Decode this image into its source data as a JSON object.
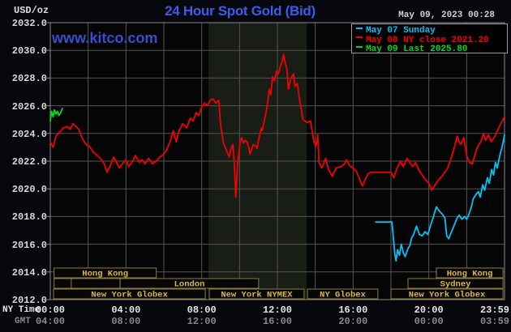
{
  "header": {
    "unit": "USD/oz",
    "title": "24 Hour Spot Gold (Bid)",
    "datetime": "May 09, 2023 00:28",
    "watermark": "www.kitco.com"
  },
  "axis_corner": {
    "ny_time": "NY Time",
    "gmt": "GMT"
  },
  "legend": {
    "items": [
      {
        "label": "May 07 Sunday",
        "color_key": "may07"
      },
      {
        "label": "May 08 NY close 2021.20",
        "color_key": "may08"
      },
      {
        "label": "May 09 Last 2025.80",
        "color_key": "may09"
      }
    ]
  },
  "colors": {
    "page_bg": "#07070e",
    "plot_bg": "#050505",
    "band": "#181d15",
    "grid": "#555555",
    "frame": "#8a8a8a",
    "title": "#3d5ce8",
    "watermark": "#3450d0",
    "axis_text": "#e6e6e6",
    "gmt_text": "#8a8a8a",
    "session_border": "#8d7c33",
    "session_text": "#d9b944",
    "may07": "#00c3f7",
    "may08": "#f40000",
    "may09": "#00d826"
  },
  "chart_data": {
    "type": "line",
    "title": "24 Hour Spot Gold (Bid)",
    "ylabel": "USD/oz",
    "x_axis": {
      "range_hours": [
        0,
        24
      ],
      "gridline_step_hours": 2,
      "ticks": [
        {
          "h": 0,
          "ny": "00:00",
          "gmt": "04:00"
        },
        {
          "h": 4,
          "ny": "04:00",
          "gmt": "08:00"
        },
        {
          "h": 8,
          "ny": "08:00",
          "gmt": "12:00"
        },
        {
          "h": 12,
          "ny": "12:00",
          "gmt": "16:00"
        },
        {
          "h": 16,
          "ny": "16:00",
          "gmt": "20:00"
        },
        {
          "h": 20,
          "ny": "20:00",
          "gmt": "00:00"
        },
        {
          "h": 23.983,
          "ny": "23:59",
          "gmt": "03:59"
        }
      ]
    },
    "y_axis": {
      "min": 2012,
      "max": 2032,
      "step": 2,
      "unit": "USD/oz",
      "ticks": [
        {
          "v": 2032,
          "label": "2032.0"
        },
        {
          "v": 2030,
          "label": "2030.0"
        },
        {
          "v": 2028,
          "label": "2028.0"
        },
        {
          "v": 2026,
          "label": "2026.0"
        },
        {
          "v": 2024,
          "label": "2024.0"
        },
        {
          "v": 2022,
          "label": "2022.0"
        },
        {
          "v": 2020,
          "label": "2020.0"
        },
        {
          "v": 2018,
          "label": "2018.0"
        },
        {
          "v": 2016,
          "label": "2016.0"
        },
        {
          "v": 2014,
          "label": "2014.0"
        },
        {
          "v": 2012,
          "label": "2012.0"
        }
      ]
    },
    "nymex_band_hours": [
      8.36,
      13.55
    ],
    "sessions": [
      {
        "row": 0,
        "label": "Hong Kong",
        "h1": 0.2,
        "h2": 5.6
      },
      {
        "row": 0,
        "label": "Hong Kong",
        "h1": 20.4,
        "h2": 23.92
      },
      {
        "row": 1,
        "label": "",
        "h1": 0.2,
        "h2": 1.11
      },
      {
        "row": 1,
        "label": "",
        "h1": 1.11,
        "h2": 3.69
      },
      {
        "row": 1,
        "label": "London",
        "h1": 3.69,
        "h2": 11.01
      },
      {
        "row": 1,
        "label": "Sydney",
        "h1": 18.9,
        "h2": 23.92
      },
      {
        "row": 2,
        "label": "New York Globex",
        "h1": 0.17,
        "h2": 8.19
      },
      {
        "row": 2,
        "label": "New York NYMEX",
        "h1": 8.4,
        "h2": 13.41
      },
      {
        "row": 2,
        "label": "NY Globex",
        "h1": 13.59,
        "h2": 17.31
      },
      {
        "row": 2,
        "label": "New York Globex",
        "h1": 18.0,
        "h2": 23.92
      }
    ],
    "series": [
      {
        "name": "May 07 Sunday",
        "color_key": "may07",
        "points": [
          [
            17.2,
            2017.6
          ],
          [
            18.05,
            2017.6
          ],
          [
            18.12,
            2016.6
          ],
          [
            18.2,
            2015.3
          ],
          [
            18.27,
            2014.8
          ],
          [
            18.35,
            2015.6
          ],
          [
            18.45,
            2015.2
          ],
          [
            18.55,
            2016.0
          ],
          [
            18.65,
            2015.4
          ],
          [
            18.75,
            2015.1
          ],
          [
            18.9,
            2015.7
          ],
          [
            19.0,
            2015.9
          ],
          [
            19.1,
            2016.5
          ],
          [
            19.2,
            2016.7
          ],
          [
            19.35,
            2017.3
          ],
          [
            19.5,
            2016.7
          ],
          [
            19.65,
            2016.6
          ],
          [
            19.8,
            2016.9
          ],
          [
            19.95,
            2016.7
          ],
          [
            20.1,
            2017.4
          ],
          [
            20.25,
            2018.0
          ],
          [
            20.4,
            2018.7
          ],
          [
            20.55,
            2018.4
          ],
          [
            20.7,
            2018.2
          ],
          [
            20.85,
            2017.9
          ],
          [
            20.95,
            2016.6
          ],
          [
            21.05,
            2016.4
          ],
          [
            21.2,
            2016.9
          ],
          [
            21.35,
            2017.4
          ],
          [
            21.5,
            2017.9
          ],
          [
            21.6,
            2018.1
          ],
          [
            21.75,
            2017.8
          ],
          [
            21.9,
            2018.0
          ],
          [
            22.0,
            2017.8
          ],
          [
            22.1,
            2018.1
          ],
          [
            22.25,
            2018.7
          ],
          [
            22.35,
            2019.3
          ],
          [
            22.5,
            2019.6
          ],
          [
            22.62,
            2019.8
          ],
          [
            22.72,
            2019.4
          ],
          [
            22.85,
            2020.3
          ],
          [
            22.95,
            2019.9
          ],
          [
            23.1,
            2020.8
          ],
          [
            23.2,
            2020.4
          ],
          [
            23.32,
            2021.4
          ],
          [
            23.42,
            2021.0
          ],
          [
            23.52,
            2021.9
          ],
          [
            23.62,
            2021.5
          ],
          [
            23.75,
            2022.4
          ],
          [
            23.85,
            2022.9
          ],
          [
            23.95,
            2023.5
          ],
          [
            24.0,
            2023.9
          ]
        ]
      },
      {
        "name": "May 08 NY close 2021.20",
        "color_key": "may08",
        "points": [
          [
            0,
            2023.4
          ],
          [
            0.15,
            2023.0
          ],
          [
            0.3,
            2023.8
          ],
          [
            0.5,
            2024.1
          ],
          [
            0.7,
            2024.4
          ],
          [
            0.9,
            2024.5
          ],
          [
            1.05,
            2024.3
          ],
          [
            1.2,
            2024.7
          ],
          [
            1.35,
            2024.5
          ],
          [
            1.5,
            2024.3
          ],
          [
            1.7,
            2023.6
          ],
          [
            1.9,
            2023.2
          ],
          [
            2.1,
            2023.0
          ],
          [
            2.3,
            2022.6
          ],
          [
            2.5,
            2022.4
          ],
          [
            2.7,
            2022.1
          ],
          [
            2.85,
            2021.8
          ],
          [
            3.0,
            2021.2
          ],
          [
            3.15,
            2021.6
          ],
          [
            3.35,
            2022.3
          ],
          [
            3.5,
            2021.9
          ],
          [
            3.65,
            2021.5
          ],
          [
            3.8,
            2021.8
          ],
          [
            4.0,
            2022.1
          ],
          [
            4.15,
            2021.6
          ],
          [
            4.35,
            2022.0
          ],
          [
            4.5,
            2022.4
          ],
          [
            4.7,
            2021.9
          ],
          [
            4.85,
            2022.1
          ],
          [
            5.0,
            2021.8
          ],
          [
            5.2,
            2022.2
          ],
          [
            5.4,
            2021.8
          ],
          [
            5.6,
            2022.0
          ],
          [
            5.8,
            2022.3
          ],
          [
            6.0,
            2022.5
          ],
          [
            6.15,
            2022.8
          ],
          [
            6.35,
            2023.5
          ],
          [
            6.5,
            2024.2
          ],
          [
            6.65,
            2023.4
          ],
          [
            6.8,
            2024.2
          ],
          [
            7.0,
            2024.7
          ],
          [
            7.2,
            2024.4
          ],
          [
            7.4,
            2025.1
          ],
          [
            7.55,
            2024.9
          ],
          [
            7.7,
            2025.5
          ],
          [
            7.85,
            2025.3
          ],
          [
            8.0,
            2025.9
          ],
          [
            8.15,
            2026.2
          ],
          [
            8.3,
            2026.0
          ],
          [
            8.45,
            2026.4
          ],
          [
            8.6,
            2026.5
          ],
          [
            8.75,
            2026.2
          ],
          [
            8.9,
            2026.4
          ],
          [
            9.0,
            2024.6
          ],
          [
            9.15,
            2023.3
          ],
          [
            9.3,
            2022.8
          ],
          [
            9.45,
            2022.3
          ],
          [
            9.55,
            2022.9
          ],
          [
            9.65,
            2023.2
          ],
          [
            9.72,
            2021.9
          ],
          [
            9.8,
            2019.4
          ],
          [
            9.9,
            2021.9
          ],
          [
            10.05,
            2023.5
          ],
          [
            10.12,
            2023.7
          ],
          [
            10.2,
            2023.3
          ],
          [
            10.3,
            2023.5
          ],
          [
            10.4,
            2023.4
          ],
          [
            10.5,
            2022.9
          ],
          [
            10.55,
            2022.5
          ],
          [
            10.65,
            2022.9
          ],
          [
            10.72,
            2023.2
          ],
          [
            10.85,
            2023.1
          ],
          [
            10.93,
            2022.9
          ],
          [
            11.0,
            2023.5
          ],
          [
            11.15,
            2024.4
          ],
          [
            11.2,
            2024.2
          ],
          [
            11.3,
            2024.9
          ],
          [
            11.4,
            2025.5
          ],
          [
            11.5,
            2026.4
          ],
          [
            11.57,
            2027.2
          ],
          [
            11.65,
            2026.8
          ],
          [
            11.75,
            2028.1
          ],
          [
            11.85,
            2027.8
          ],
          [
            11.95,
            2028.5
          ],
          [
            12.05,
            2028.3
          ],
          [
            12.15,
            2028.8
          ],
          [
            12.25,
            2029.2
          ],
          [
            12.33,
            2029.7
          ],
          [
            12.42,
            2029.0
          ],
          [
            12.5,
            2028.7
          ],
          [
            12.58,
            2027.2
          ],
          [
            12.72,
            2028.0
          ],
          [
            12.86,
            2028.3
          ],
          [
            12.92,
            2027.4
          ],
          [
            13.05,
            2027.6
          ],
          [
            13.2,
            2026.2
          ],
          [
            13.35,
            2025.0
          ],
          [
            13.55,
            2024.8
          ],
          [
            13.75,
            2024.9
          ],
          [
            13.93,
            2023.4
          ],
          [
            14.05,
            2023.1
          ],
          [
            14.13,
            2023.9
          ],
          [
            14.2,
            2021.9
          ],
          [
            14.35,
            2021.5
          ],
          [
            14.55,
            2022.2
          ],
          [
            14.7,
            2021.4
          ],
          [
            14.9,
            2020.9
          ],
          [
            15.1,
            2021.5
          ],
          [
            15.35,
            2021.6
          ],
          [
            15.55,
            2021.8
          ],
          [
            15.65,
            2022.1
          ],
          [
            15.8,
            2021.7
          ],
          [
            16.0,
            2021.5
          ],
          [
            16.2,
            2021.2
          ],
          [
            16.4,
            2020.5
          ],
          [
            16.5,
            2020.2
          ],
          [
            16.65,
            2020.7
          ],
          [
            16.8,
            2021.1
          ],
          [
            16.95,
            2021.2
          ],
          [
            18.0,
            2021.2
          ],
          [
            18.15,
            2020.8
          ],
          [
            18.3,
            2021.4
          ],
          [
            18.5,
            2022.0
          ],
          [
            18.65,
            2021.6
          ],
          [
            18.85,
            2022.2
          ],
          [
            19.0,
            2021.9
          ],
          [
            19.15,
            2021.6
          ],
          [
            19.3,
            2021.9
          ],
          [
            19.5,
            2021.3
          ],
          [
            19.8,
            2020.7
          ],
          [
            20.0,
            2020.4
          ],
          [
            20.15,
            2019.9
          ],
          [
            20.3,
            2020.2
          ],
          [
            20.5,
            2020.6
          ],
          [
            20.75,
            2021.0
          ],
          [
            21.0,
            2021.5
          ],
          [
            21.2,
            2022.3
          ],
          [
            21.35,
            2023.0
          ],
          [
            21.5,
            2023.8
          ],
          [
            21.6,
            2023.4
          ],
          [
            21.7,
            2023.2
          ],
          [
            21.85,
            2023.7
          ],
          [
            22.0,
            2022.4
          ],
          [
            22.15,
            2021.9
          ],
          [
            22.3,
            2021.8
          ],
          [
            22.45,
            2022.5
          ],
          [
            22.6,
            2023.1
          ],
          [
            22.75,
            2023.4
          ],
          [
            22.9,
            2024.0
          ],
          [
            23.0,
            2023.5
          ],
          [
            23.15,
            2023.9
          ],
          [
            23.3,
            2023.4
          ],
          [
            23.45,
            2023.7
          ],
          [
            23.6,
            2024.1
          ],
          [
            23.8,
            2024.7
          ],
          [
            24.0,
            2025.2
          ]
        ]
      },
      {
        "name": "May 09 Last 2025.80",
        "color_key": "may09",
        "points": [
          [
            0,
            2024.9
          ],
          [
            0.07,
            2025.6
          ],
          [
            0.15,
            2025.2
          ],
          [
            0.22,
            2025.7
          ],
          [
            0.3,
            2025.4
          ],
          [
            0.38,
            2025.6
          ],
          [
            0.45,
            2025.3
          ],
          [
            0.55,
            2025.5
          ],
          [
            0.64,
            2025.8
          ]
        ]
      }
    ]
  }
}
